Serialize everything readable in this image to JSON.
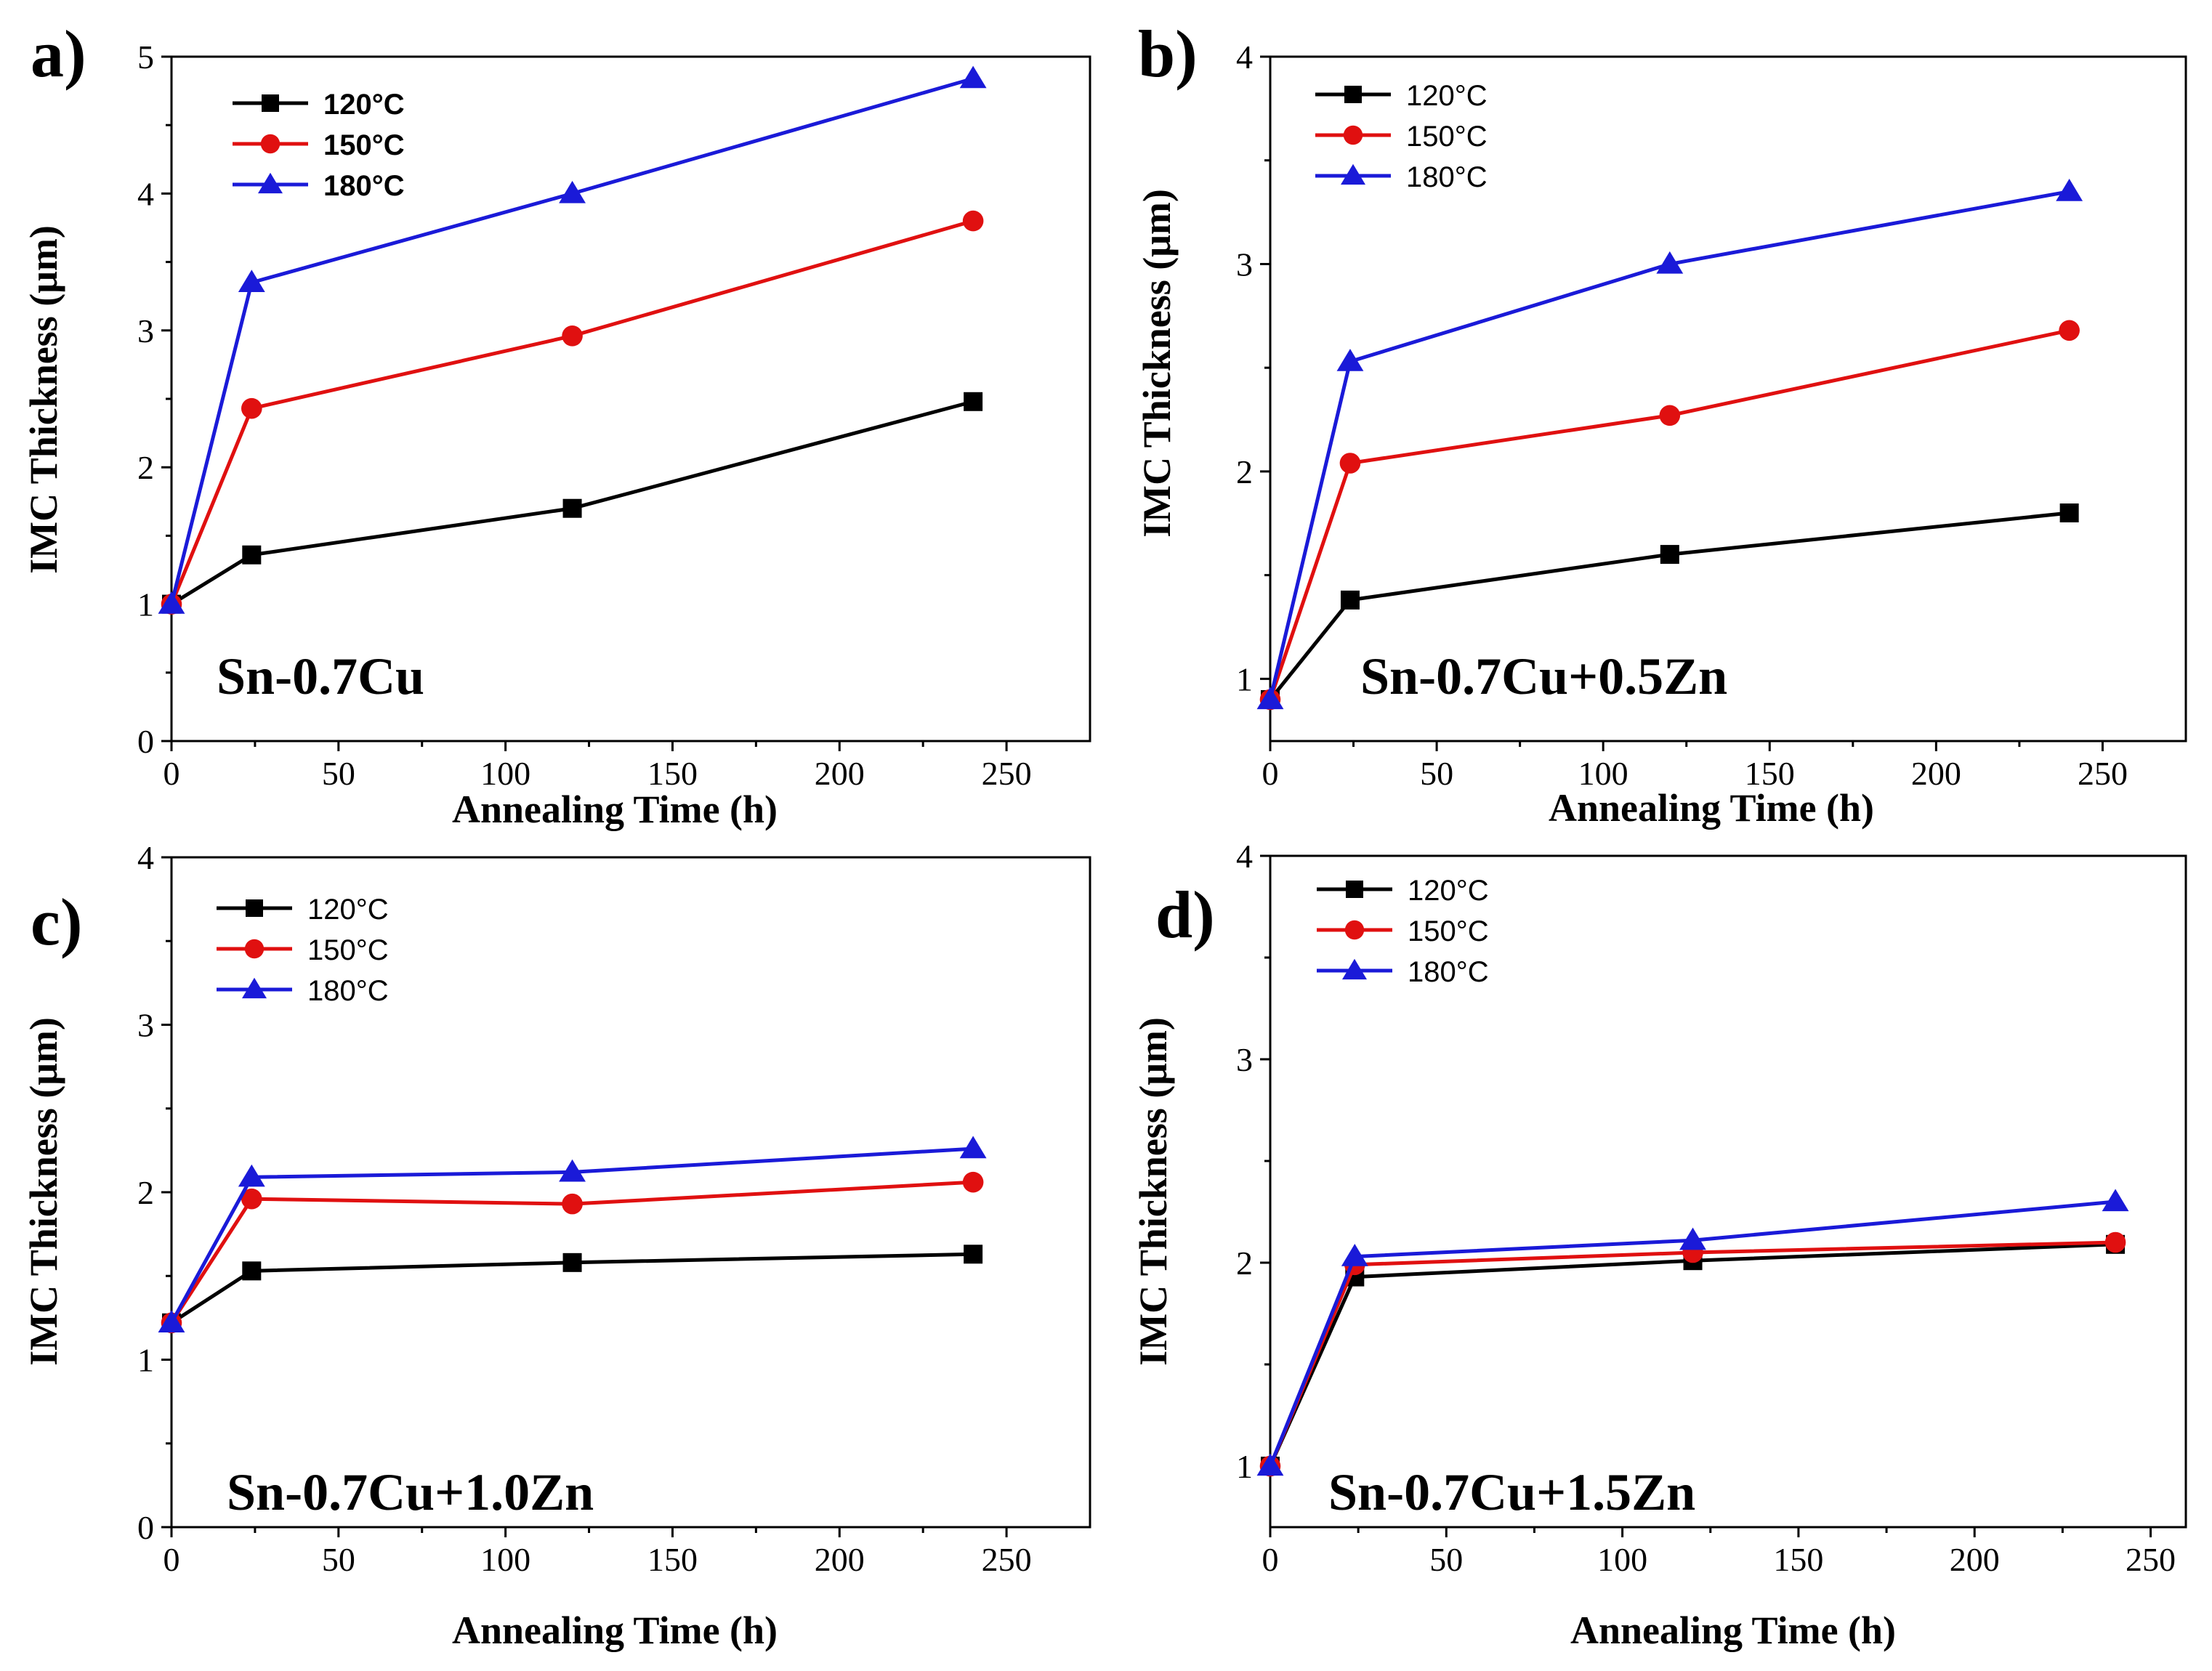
{
  "chart_data": [
    {
      "type": "line",
      "panel_label": "a)",
      "annotation": "Sn-0.7Cu",
      "xlabel": "Annealing Time (h)",
      "ylabel": "IMC Thickness (μm)",
      "xlim": [
        0,
        275
      ],
      "ylim": [
        0,
        5
      ],
      "xticks": [
        0,
        50,
        100,
        150,
        200,
        250
      ],
      "yticks": [
        0,
        1,
        2,
        3,
        4,
        5
      ],
      "legend_position": "top-left",
      "legend_bold": true,
      "x": [
        0,
        24,
        120,
        240
      ],
      "series": [
        {
          "name": "120°C",
          "color": "#000000",
          "marker": "square",
          "values": [
            1.0,
            1.36,
            1.7,
            2.48
          ]
        },
        {
          "name": "150°C",
          "color": "#e01010",
          "marker": "circle",
          "values": [
            1.0,
            2.43,
            2.96,
            3.8
          ]
        },
        {
          "name": "180°C",
          "color": "#1a1ad8",
          "marker": "triangle",
          "values": [
            1.0,
            3.35,
            4.0,
            4.84
          ]
        }
      ]
    },
    {
      "type": "line",
      "panel_label": "b)",
      "annotation": "Sn-0.7Cu+0.5Zn",
      "xlabel": "Annealing Time (h)",
      "ylabel": "IMC Thickness (μm)",
      "xlim": [
        0,
        275
      ],
      "ylim": [
        0.7,
        4
      ],
      "xticks": [
        0,
        50,
        100,
        150,
        200,
        250
      ],
      "yticks": [
        1,
        2,
        3,
        4
      ],
      "legend_position": "top-left",
      "legend_bold": false,
      "x": [
        0,
        24,
        120,
        240
      ],
      "series": [
        {
          "name": "120°C",
          "color": "#000000",
          "marker": "square",
          "values": [
            0.9,
            1.38,
            1.6,
            1.8
          ]
        },
        {
          "name": "150°C",
          "color": "#e01010",
          "marker": "circle",
          "values": [
            0.9,
            2.04,
            2.27,
            2.68
          ]
        },
        {
          "name": "180°C",
          "color": "#1a1ad8",
          "marker": "triangle",
          "values": [
            0.9,
            2.53,
            3.0,
            3.35
          ]
        }
      ]
    },
    {
      "type": "line",
      "panel_label": "c)",
      "annotation": "Sn-0.7Cu+1.0Zn",
      "xlabel": "Annealing Time (h)",
      "ylabel": "IMC Thickness (μm)",
      "xlim": [
        0,
        275
      ],
      "ylim": [
        0,
        4
      ],
      "xticks": [
        0,
        50,
        100,
        150,
        200,
        250
      ],
      "yticks": [
        0,
        1,
        2,
        3,
        4
      ],
      "legend_position": "top-left",
      "legend_bold": false,
      "x": [
        0,
        24,
        120,
        240
      ],
      "series": [
        {
          "name": "120°C",
          "color": "#000000",
          "marker": "square",
          "values": [
            1.22,
            1.53,
            1.58,
            1.63
          ]
        },
        {
          "name": "150°C",
          "color": "#e01010",
          "marker": "circle",
          "values": [
            1.22,
            1.96,
            1.93,
            2.06
          ]
        },
        {
          "name": "180°C",
          "color": "#1a1ad8",
          "marker": "triangle",
          "values": [
            1.22,
            2.09,
            2.12,
            2.26
          ]
        }
      ]
    },
    {
      "type": "line",
      "panel_label": "d)",
      "annotation": "Sn-0.7Cu+1.5Zn",
      "xlabel": "Annealing Time (h)",
      "ylabel": "IMC Thickness (μm)",
      "xlim": [
        0,
        260
      ],
      "ylim": [
        0.7,
        4
      ],
      "xticks": [
        0,
        50,
        100,
        150,
        200,
        250
      ],
      "yticks": [
        1,
        2,
        3,
        4
      ],
      "legend_position": "top-left",
      "legend_bold": false,
      "x": [
        0,
        24,
        120,
        240
      ],
      "series": [
        {
          "name": "120°C",
          "color": "#000000",
          "marker": "square",
          "values": [
            1.0,
            1.93,
            2.01,
            2.09
          ]
        },
        {
          "name": "150°C",
          "color": "#e01010",
          "marker": "circle",
          "values": [
            1.0,
            1.99,
            2.05,
            2.1
          ]
        },
        {
          "name": "180°C",
          "color": "#1a1ad8",
          "marker": "triangle",
          "values": [
            1.0,
            2.03,
            2.11,
            2.3
          ]
        }
      ]
    }
  ]
}
